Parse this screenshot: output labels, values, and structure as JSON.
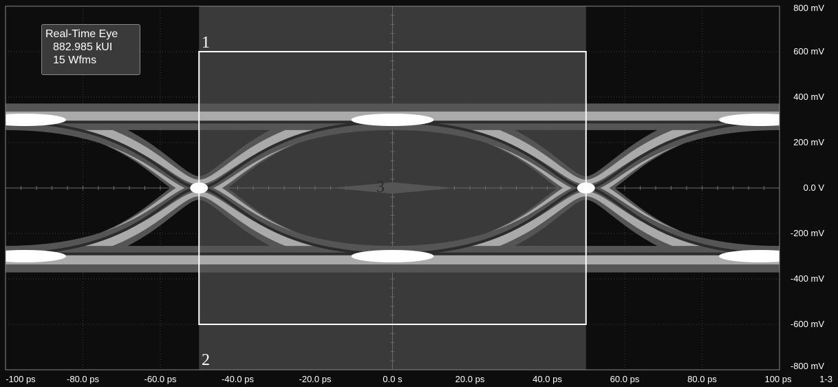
{
  "chart_data": {
    "type": "eye-diagram",
    "title": "Real-Time Eye",
    "info": {
      "title": "Real-Time Eye",
      "unit_intervals": "882.985 kUI",
      "waveforms": "15 Wfms"
    },
    "x_tick_labels": [
      "-100 ps",
      "-80.0 ps",
      "-60.0 ps",
      "-40.0 ps",
      "-20.0 ps",
      "0.0 s",
      "20.0 ps",
      "40.0 ps",
      "60.0 ps",
      "80.0 ps",
      "100 ps"
    ],
    "y_tick_labels": [
      "800 mV",
      "600 mV",
      "400 mV",
      "200 mV",
      "0.0 V",
      "-200 mV",
      "-400 mV",
      "-600 mV",
      "-800 mV"
    ],
    "xlim_ps": [
      -100,
      100
    ],
    "ylim_mV": [
      -800,
      800
    ],
    "unit_interval_ps": 100,
    "signal_levels_mV": [
      300,
      -300
    ],
    "crossings_ps": [
      -50,
      50
    ],
    "mask_window": {
      "x_ps": [
        -50,
        50
      ],
      "y_mV": [
        -600,
        600
      ]
    },
    "shaded_region_ps": [
      -50,
      50
    ],
    "region_labels": [
      "1",
      "2",
      "3"
    ],
    "corner_label": "1-3",
    "grid": true,
    "colors": {
      "background": "#0d0d0d",
      "shaded": "#3a3a3a",
      "trace_outer": "#555555",
      "trace_mid": "#aaaaaa",
      "trace_hot": "#ffffff",
      "axes": "#ffffff"
    }
  }
}
